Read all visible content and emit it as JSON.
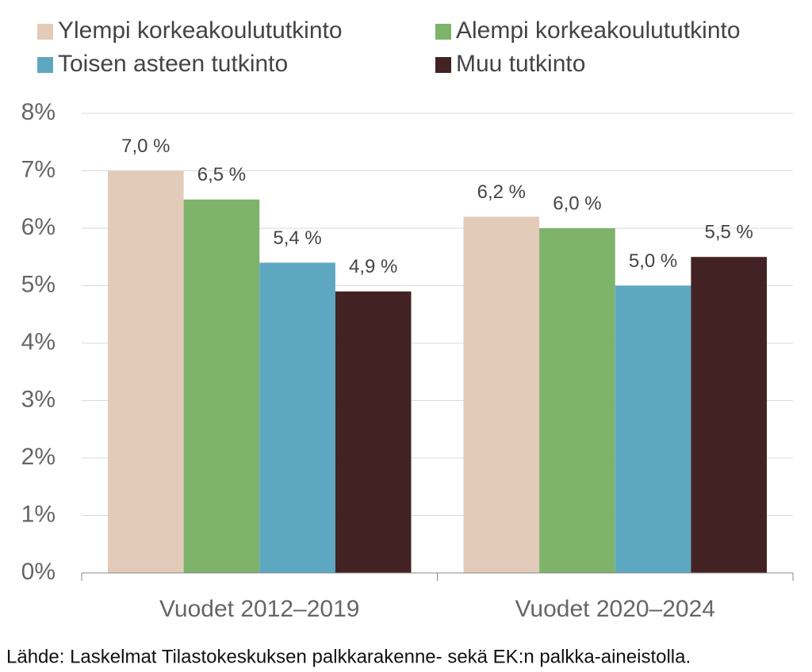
{
  "chart_data": {
    "type": "bar",
    "categories": [
      "Vuodet 2012–2019",
      "Vuodet 2020–2024"
    ],
    "series": [
      {
        "name": "Ylempi korkeakoulututkinto",
        "color": "#e2cbb9",
        "values": [
          7.0,
          6.2
        ],
        "value_labels": [
          "7,0 %",
          "6,2 %"
        ]
      },
      {
        "name": "Alempi korkeakoulututkinto",
        "color": "#7db36a",
        "values": [
          6.5,
          6.0
        ],
        "value_labels": [
          "6,5 %",
          "6,0 %"
        ]
      },
      {
        "name": "Toisen asteen tutkinto",
        "color": "#5ea7c1",
        "values": [
          5.4,
          5.0
        ],
        "value_labels": [
          "5,4 %",
          "5,0 %"
        ]
      },
      {
        "name": "Muu tutkinto",
        "color": "#432224",
        "values": [
          4.9,
          5.5
        ],
        "value_labels": [
          "4,9 %",
          "5,5 %"
        ]
      }
    ],
    "ylim": [
      0,
      8
    ],
    "yticks": [
      {
        "value": 0,
        "label": "0%"
      },
      {
        "value": 1,
        "label": "1%"
      },
      {
        "value": 2,
        "label": "2%"
      },
      {
        "value": 3,
        "label": "3%"
      },
      {
        "value": 4,
        "label": "4%"
      },
      {
        "value": 5,
        "label": "5%"
      },
      {
        "value": 6,
        "label": "6%"
      },
      {
        "value": 7,
        "label": "7%"
      },
      {
        "value": 8,
        "label": "8%"
      }
    ],
    "grid": true,
    "legend": "top",
    "source": "Lähde: Laskelmat Tilastokeskuksen palkkarakenne- sekä EK:n palkka-aineistolla."
  }
}
